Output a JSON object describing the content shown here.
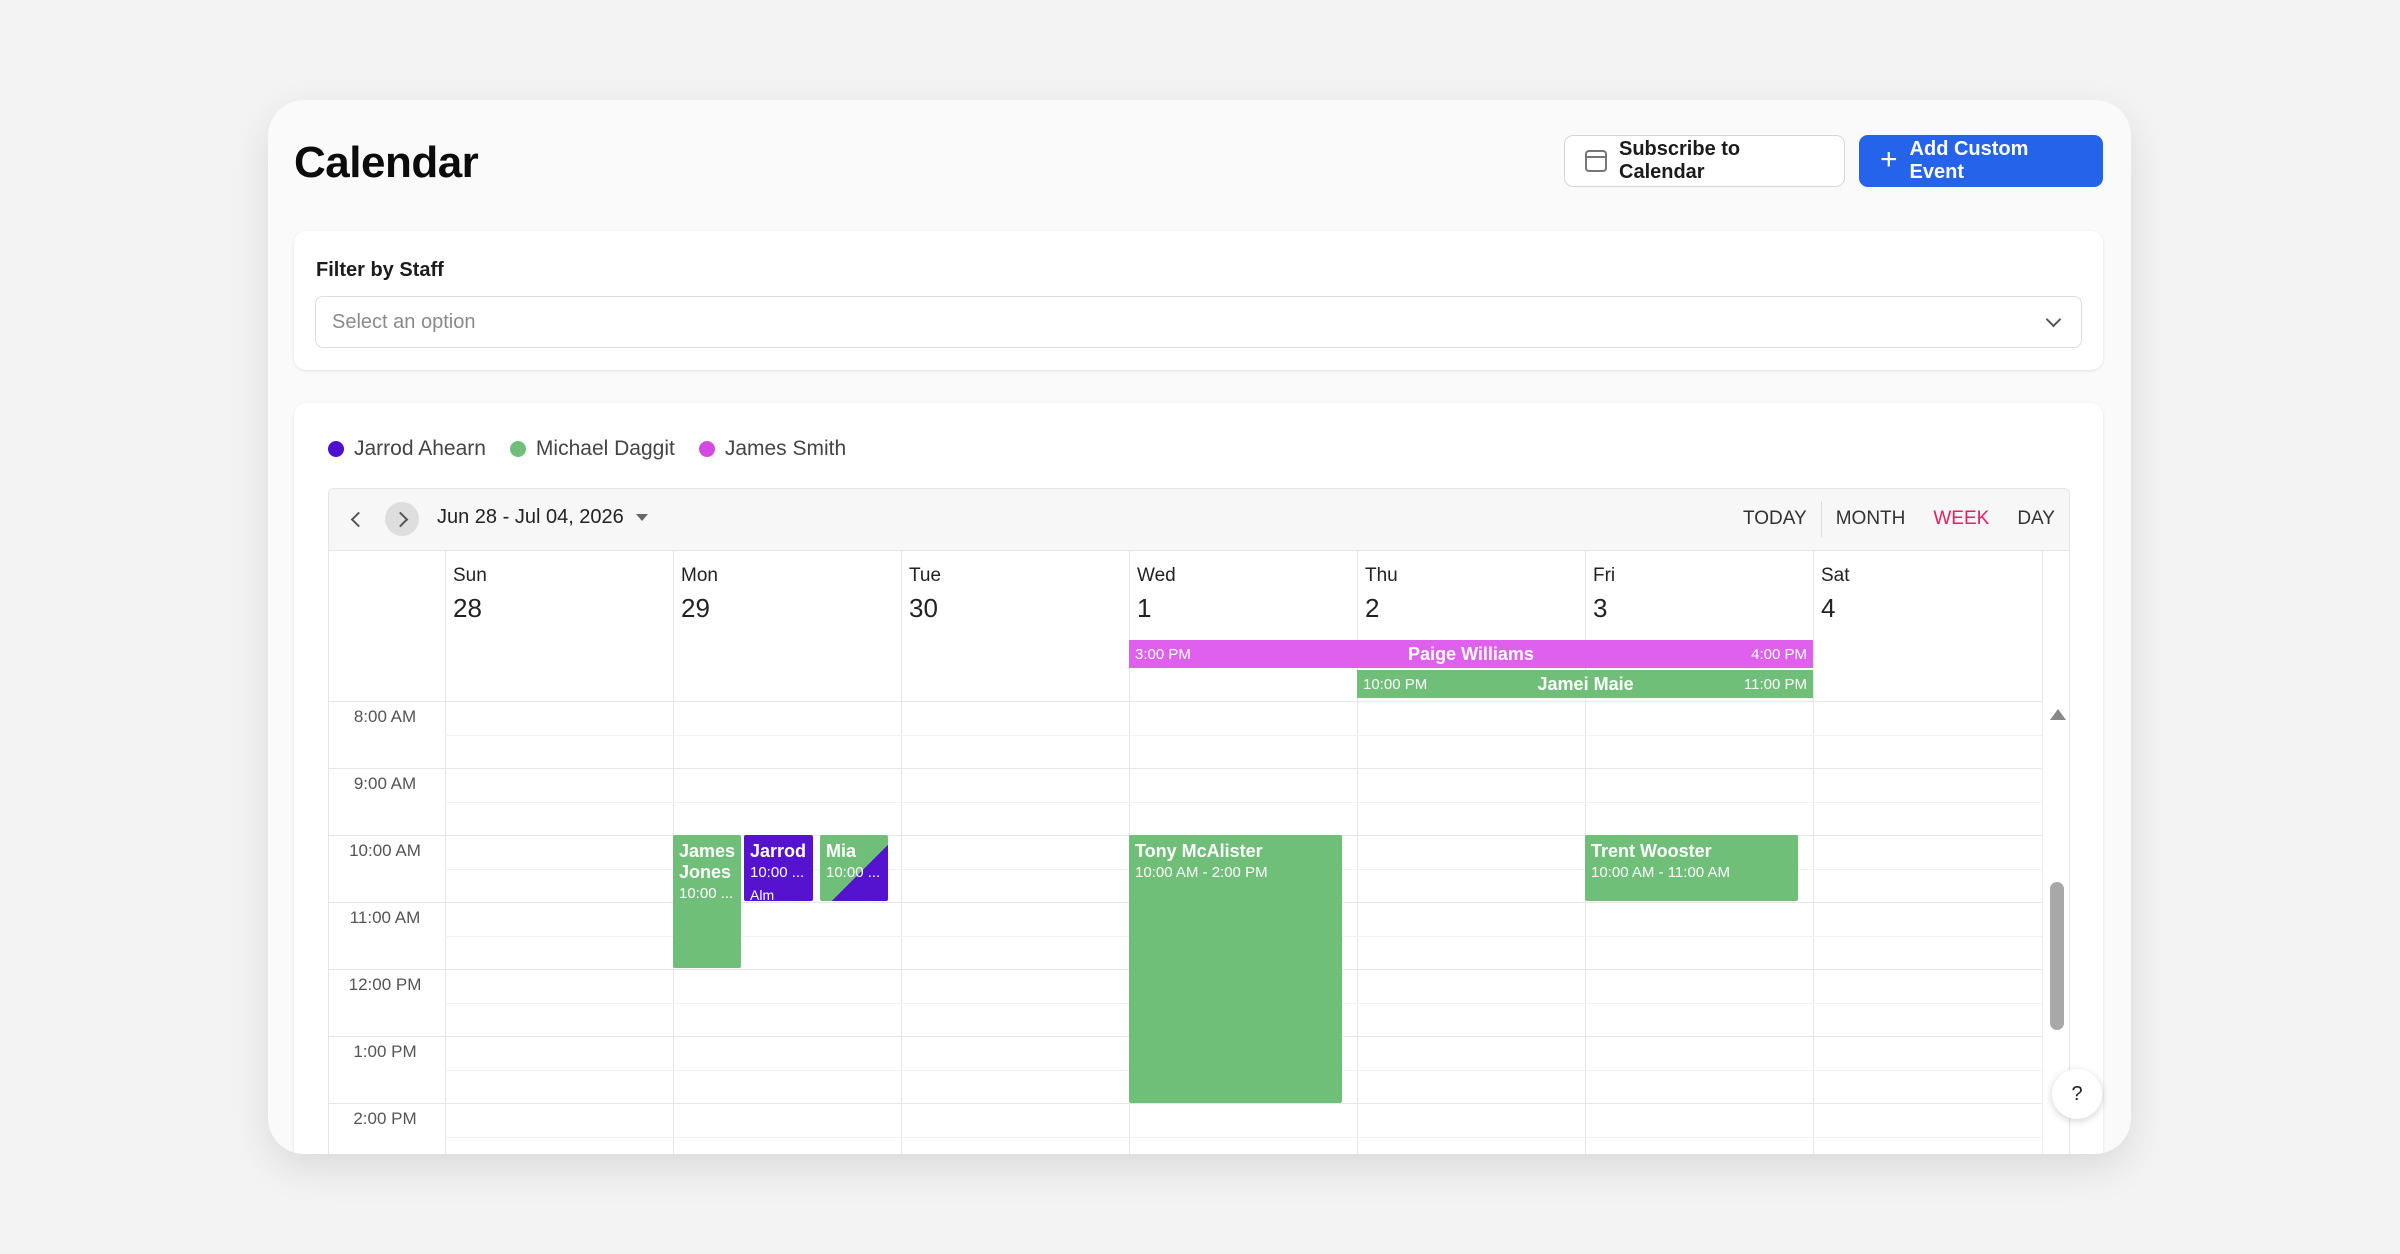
{
  "header": {
    "title": "Calendar",
    "subscribe_label": "Subscribe to Calendar",
    "add_label": "Add Custom Event"
  },
  "filter": {
    "label": "Filter by Staff",
    "placeholder": "Select an option"
  },
  "legend": [
    {
      "name": "Jarrod Ahearn",
      "color": "#4f0fcf"
    },
    {
      "name": "Michael Daggit",
      "color": "#6fbf78"
    },
    {
      "name": "James Smith",
      "color": "#d24be0"
    }
  ],
  "toolbar": {
    "date_range": "Jun 28 - Jul 04, 2026",
    "views": [
      "TODAY",
      "MONTH",
      "WEEK",
      "DAY"
    ],
    "active_view": "WEEK"
  },
  "days": [
    {
      "name": "Sun",
      "num": "28"
    },
    {
      "name": "Mon",
      "num": "29"
    },
    {
      "name": "Tue",
      "num": "30"
    },
    {
      "name": "Wed",
      "num": "1"
    },
    {
      "name": "Thu",
      "num": "2"
    },
    {
      "name": "Fri",
      "num": "3"
    },
    {
      "name": "Sat",
      "num": "4"
    }
  ],
  "times": [
    "8:00 AM",
    "9:00 AM",
    "10:00 AM",
    "11:00 AM",
    "12:00 PM",
    "1:00 PM",
    "2:00 PM"
  ],
  "allday_events": {
    "paige": {
      "start": "3:00 PM",
      "title": "Paige Williams",
      "end": "4:00 PM",
      "color": "#e060ee"
    },
    "jamei": {
      "start": "10:00 PM",
      "title": "Jamei Maie",
      "end": "11:00 PM",
      "color": "#6fbf78"
    }
  },
  "events": {
    "james_jones": {
      "title": "James Jones",
      "time": "10:00 ...",
      "color": "#6fbf78"
    },
    "jarrod": {
      "title": "Jarrod",
      "time": "10:00 ...",
      "sub": "Alm",
      "color": "#5512cf"
    },
    "mia": {
      "title": "Mia",
      "time": "10:00 ...",
      "color": "#6fbf78",
      "accent": "#5512cf"
    },
    "tony": {
      "title": "Tony McAlister",
      "time": "10:00 AM - 2:00 PM",
      "color": "#6fbf78"
    },
    "trent": {
      "title": "Trent Wooster",
      "time": "10:00 AM - 11:00 AM",
      "color": "#6fbf78"
    }
  },
  "help_label": "?"
}
